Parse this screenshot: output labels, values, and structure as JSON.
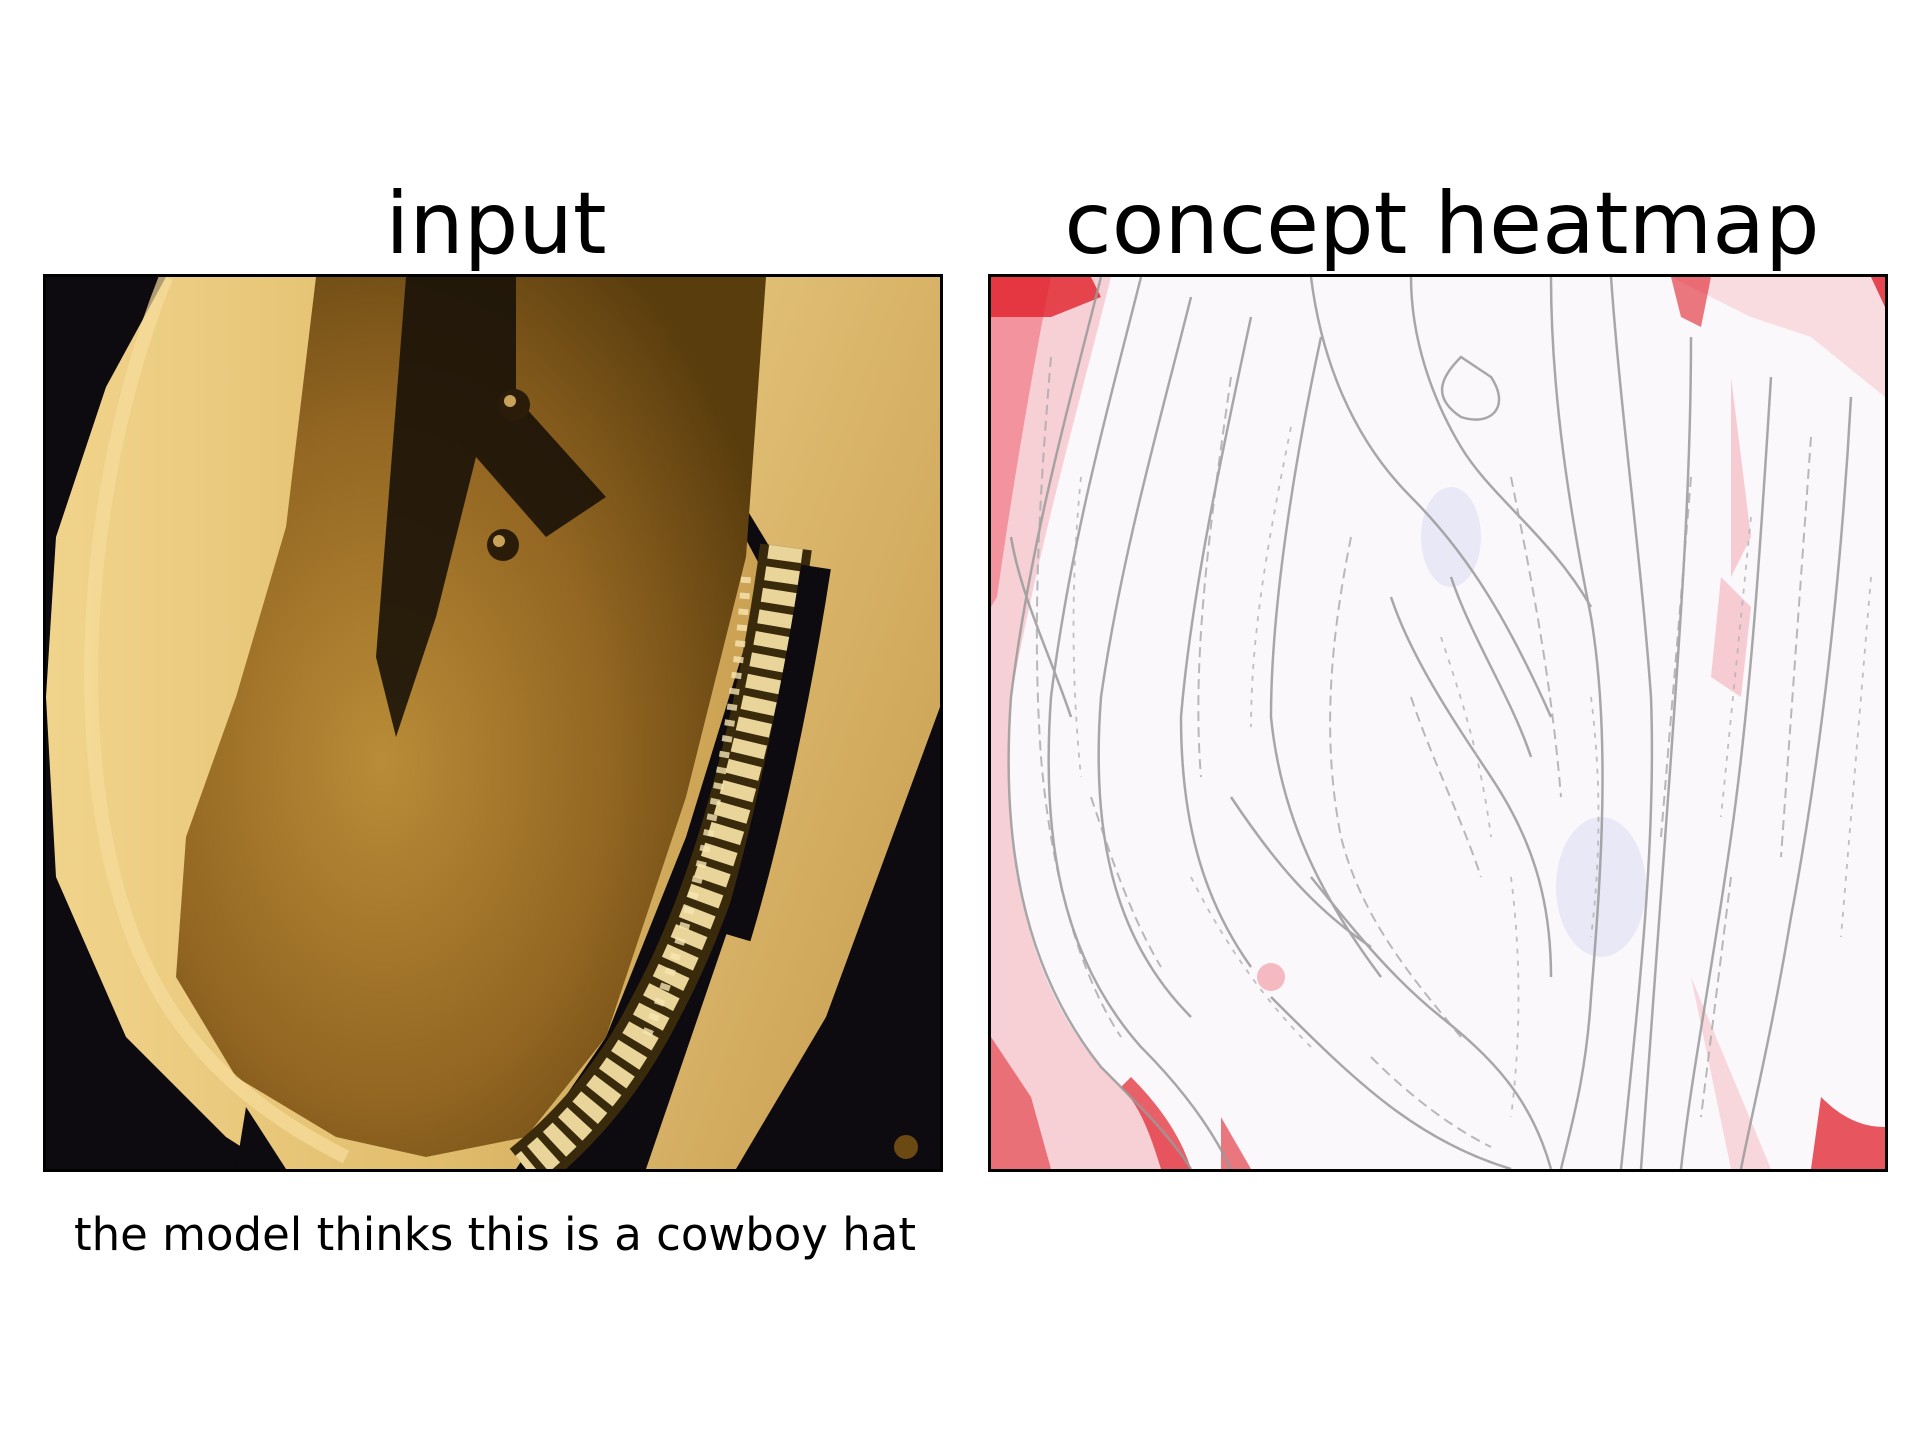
{
  "panels": {
    "input": {
      "title": "input",
      "caption": "the model thinks this is a cowboy hat"
    },
    "heatmap": {
      "title": "concept heatmap"
    }
  },
  "colors": {
    "hat_light": "#e8c77a",
    "hat_mid": "#b88a33",
    "hat_dark": "#6a4a12",
    "background_dark": "#0d0a10",
    "heat_positive": "#e0202a",
    "heat_negative": "#6a7ad8",
    "edge_lines": "#9a9a9a"
  }
}
